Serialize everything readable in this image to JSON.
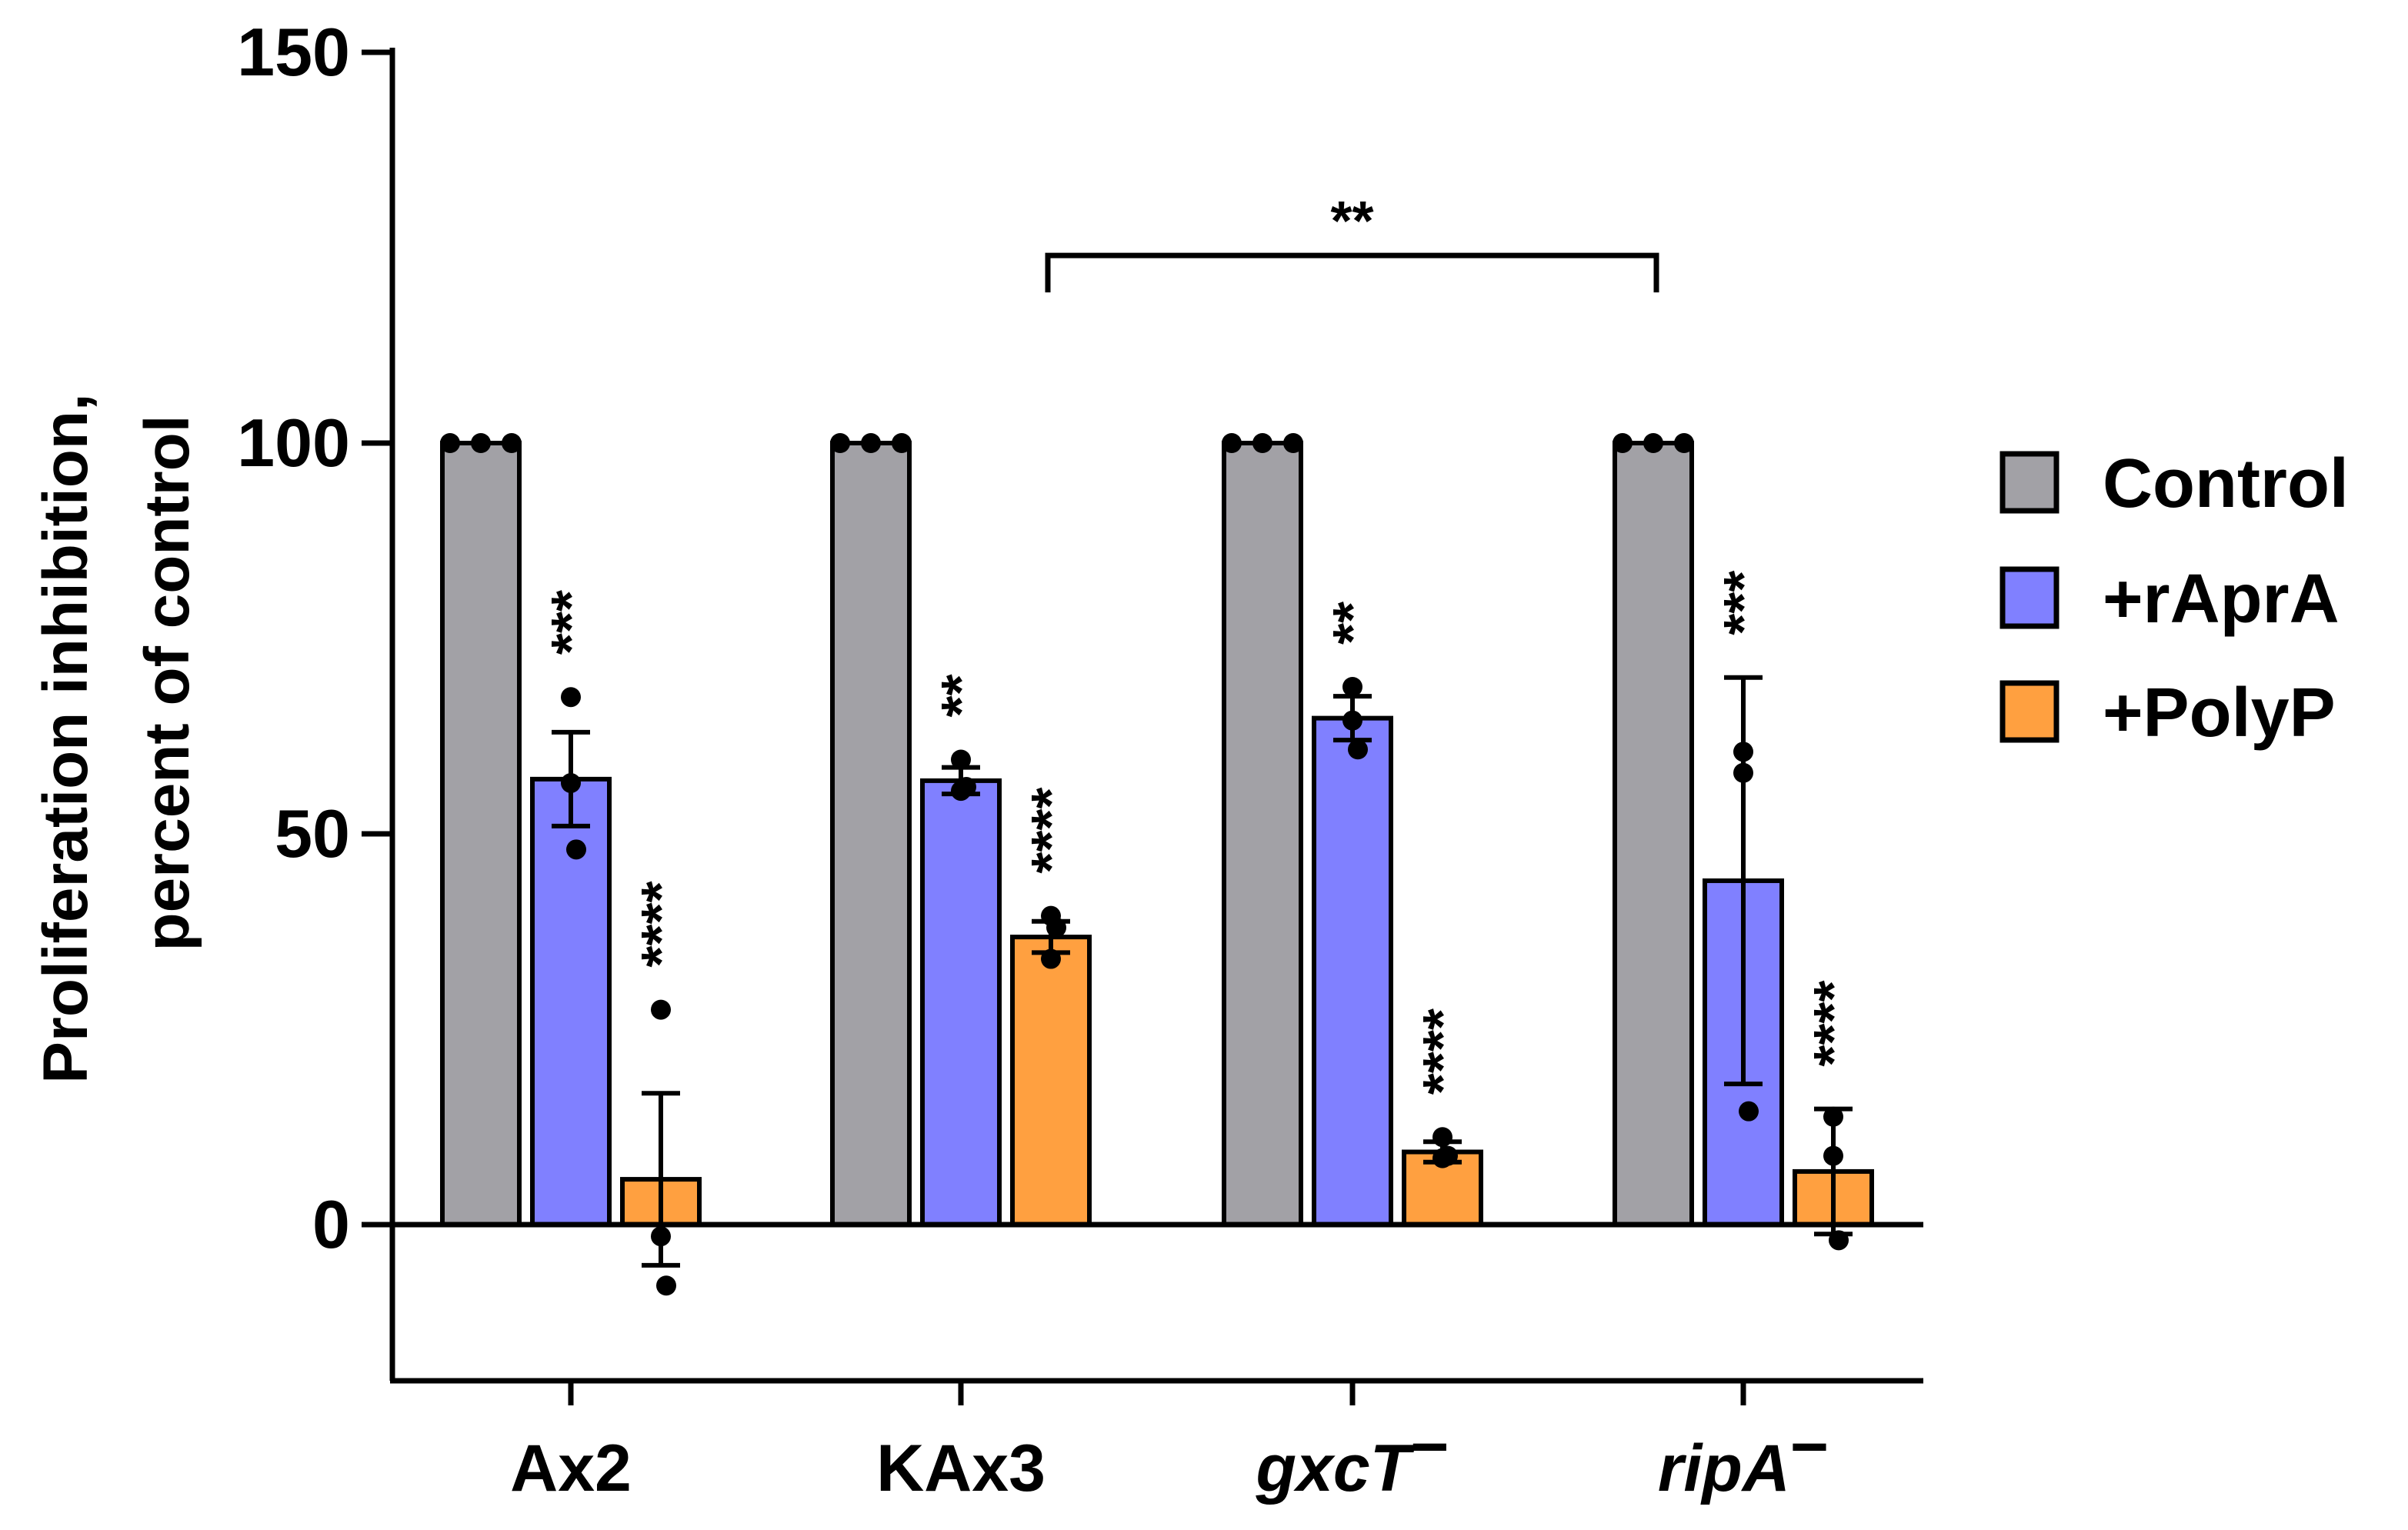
{
  "chart_data": {
    "type": "bar",
    "ylabel_line1": "Proliferation inhibition,",
    "ylabel_line2": "percent of control",
    "ylim": [
      -20,
      150
    ],
    "yticks": [
      0,
      50,
      100,
      150
    ],
    "categories": [
      {
        "main": "Ax2",
        "sup": "",
        "italic": false
      },
      {
        "main": "KAx3",
        "sup": "",
        "italic": false
      },
      {
        "main": "gxcT",
        "sup": "−",
        "italic": true
      },
      {
        "main": "ripA",
        "sup": "−",
        "italic": true
      }
    ],
    "series": [
      {
        "name": "Control",
        "color": "#a2a1a6",
        "values": [
          100,
          100,
          100,
          100
        ],
        "errors": [
          0,
          0,
          0,
          0
        ],
        "points": [
          [
            100,
            100,
            100
          ],
          [
            100,
            100,
            100
          ],
          [
            100,
            100,
            100
          ],
          [
            100,
            100,
            100
          ]
        ],
        "stars": [
          "",
          "",
          "",
          ""
        ]
      },
      {
        "name": "+rAprA",
        "color": "#8080ff",
        "values": [
          57,
          56.8,
          64.8,
          44
        ],
        "errors": [
          6,
          1.7,
          2.8,
          26
        ],
        "points": [
          [
            67.5,
            56.5,
            48
          ],
          [
            59.5,
            55.5,
            56
          ],
          [
            68.8,
            64.5,
            60.8
          ],
          [
            60.5,
            57.8,
            14.5
          ]
        ],
        "stars": [
          "***",
          "**",
          "**",
          "***"
        ]
      },
      {
        "name": "+PolyP",
        "color": "#ffa040",
        "values": [
          5.8,
          36.8,
          9.3,
          6.8
        ],
        "errors": [
          11,
          2,
          1.3,
          8
        ],
        "points": [
          [
            27.5,
            -1.5,
            -7.8
          ],
          [
            39.5,
            34,
            38
          ],
          [
            11.2,
            8.5,
            8.8
          ],
          [
            13.8,
            8.8,
            -2
          ]
        ],
        "stars": [
          "****",
          "****",
          "****",
          "****"
        ]
      }
    ],
    "comparison": {
      "from_category": 1,
      "to_category": 3,
      "y": 124,
      "label": "**"
    },
    "legend_position": "right",
    "grid": false
  }
}
